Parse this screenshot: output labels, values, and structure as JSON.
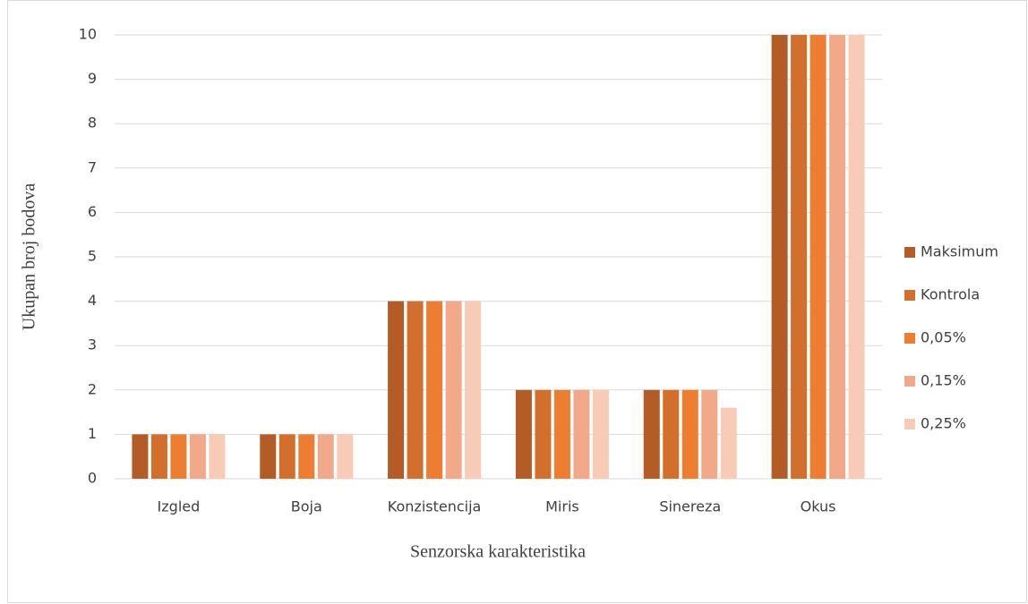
{
  "chart_data": {
    "type": "bar",
    "x_label": "Senzorska karakteristika",
    "y_label": "Ukupan broj bodova",
    "categories": [
      "Izgled",
      "Boja",
      "Konzistencija",
      "Miris",
      "Sinereza",
      "Okus"
    ],
    "series": [
      {
        "name": "Maksimum",
        "color": "#b35c26",
        "values": [
          1,
          1,
          4,
          2,
          2,
          10
        ]
      },
      {
        "name": "Kontrola",
        "color": "#d36f2d",
        "values": [
          1,
          1,
          4,
          2,
          2,
          10
        ]
      },
      {
        "name": "0,05%",
        "color": "#ed7d31",
        "values": [
          1,
          1,
          4,
          2,
          2,
          10
        ]
      },
      {
        "name": "0,15%",
        "color": "#f1a98a",
        "values": [
          1,
          1,
          4,
          2,
          2,
          10
        ]
      },
      {
        "name": "0,25%",
        "color": "#f7cbb5",
        "values": [
          1,
          1,
          4,
          2,
          1.6,
          10
        ]
      }
    ],
    "ylim": [
      0,
      10
    ],
    "yticks": [
      0,
      1,
      2,
      3,
      4,
      5,
      6,
      7,
      8,
      9,
      10
    ],
    "grid": true,
    "legend": "right"
  }
}
